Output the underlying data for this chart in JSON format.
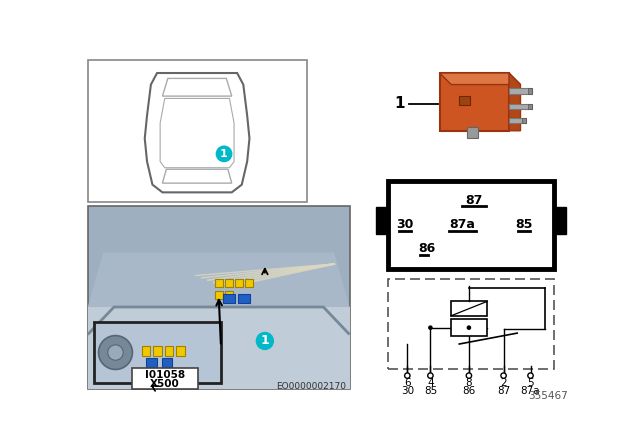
{
  "bg_color": "#ffffff",
  "ref_num": "355467",
  "eo_label": "EO0000002170",
  "part_label_line1": "I01058",
  "part_label_line2": "X500",
  "relay_orange": "#cc5522",
  "relay_orange_light": "#dd7744",
  "relay_orange_dark": "#993311",
  "teal_color": "#00b8c8",
  "photo_bg_dark": "#8899aa",
  "photo_bg_mid": "#aabbcc",
  "photo_bg_light": "#c8d4e0",
  "inset_bg": "#b0c0d0",
  "car_box_color": "#555555",
  "pin_labels": [
    "87",
    "87a",
    "85",
    "30",
    "86"
  ],
  "circuit_top_labels": [
    "6",
    "4",
    "8",
    "2",
    "5"
  ],
  "circuit_bot_labels": [
    "30",
    "85",
    "86",
    "87",
    "87a"
  ]
}
